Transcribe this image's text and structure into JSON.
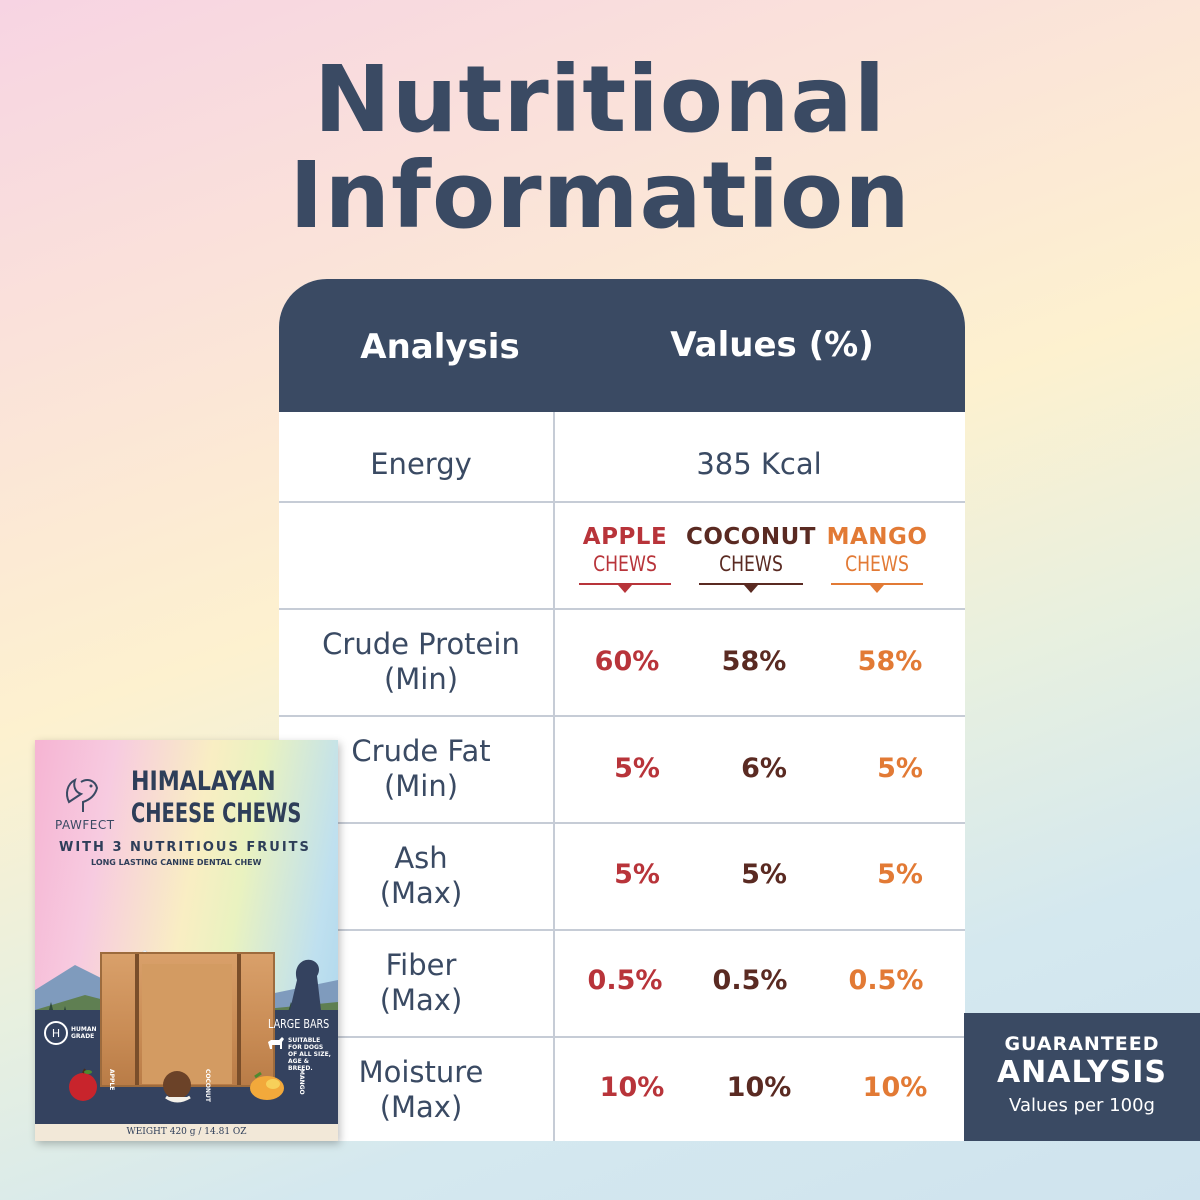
{
  "title": {
    "line1": "Nutritional",
    "line2": "Information"
  },
  "table": {
    "header": {
      "analysis": "Analysis",
      "values": "Values (%)"
    },
    "energy": {
      "label": "Energy",
      "value": "385 Kcal"
    },
    "flavors": [
      {
        "name": "APPLE",
        "sub": "CHEWS",
        "color": "#b8343a"
      },
      {
        "name": "COCONUT",
        "sub": "CHEWS",
        "color": "#5a2a22"
      },
      {
        "name": "MANGO",
        "sub": "CHEWS",
        "color": "#e27a35"
      }
    ],
    "rows": [
      {
        "line1": "Crude Protein",
        "line2": "(Min)",
        "apple": "60%",
        "coconut": "58%",
        "mango": "58%"
      },
      {
        "line1": "Crude Fat",
        "line2": "(Min)",
        "apple": "5%",
        "coconut": "6%",
        "mango": "5%"
      },
      {
        "line1": "Ash",
        "line2": "(Max)",
        "apple": "5%",
        "coconut": "5%",
        "mango": "5%"
      },
      {
        "line1": "Fiber",
        "line2": "(Max)",
        "apple": "0.5%",
        "coconut": "0.5%",
        "mango": "0.5%"
      },
      {
        "line1": "Moisture",
        "line2": "(Max)",
        "apple": "10%",
        "coconut": "10%",
        "mango": "10%"
      }
    ]
  },
  "badge": {
    "line1": "GUARANTEED",
    "line2": "ANALYSIS",
    "line3": "Values per 100g"
  },
  "package": {
    "brand": "PAWFECT",
    "title1": "HIMALAYAN",
    "title2": "CHEESE CHEWS",
    "subtitle": "WITH 3 NUTRITIOUS FRUITS",
    "tagline": "LONG LASTING CANINE DENTAL CHEW",
    "human_grade": "HUMAN GRADE",
    "large_bars": "LARGE BARS",
    "suitable": "SUITABLE FOR DOGS OF ALL SIZE, AGE & BREED.",
    "fruit1": "APPLE",
    "fruit2": "COCONUT",
    "fruit3": "MANGO",
    "weight": "WEIGHT 420 g / 14.81 OZ"
  },
  "colors": {
    "navy": "#3a4a63",
    "apple": "#b8343a",
    "coconut": "#5a2a22",
    "mango": "#e27a35"
  }
}
